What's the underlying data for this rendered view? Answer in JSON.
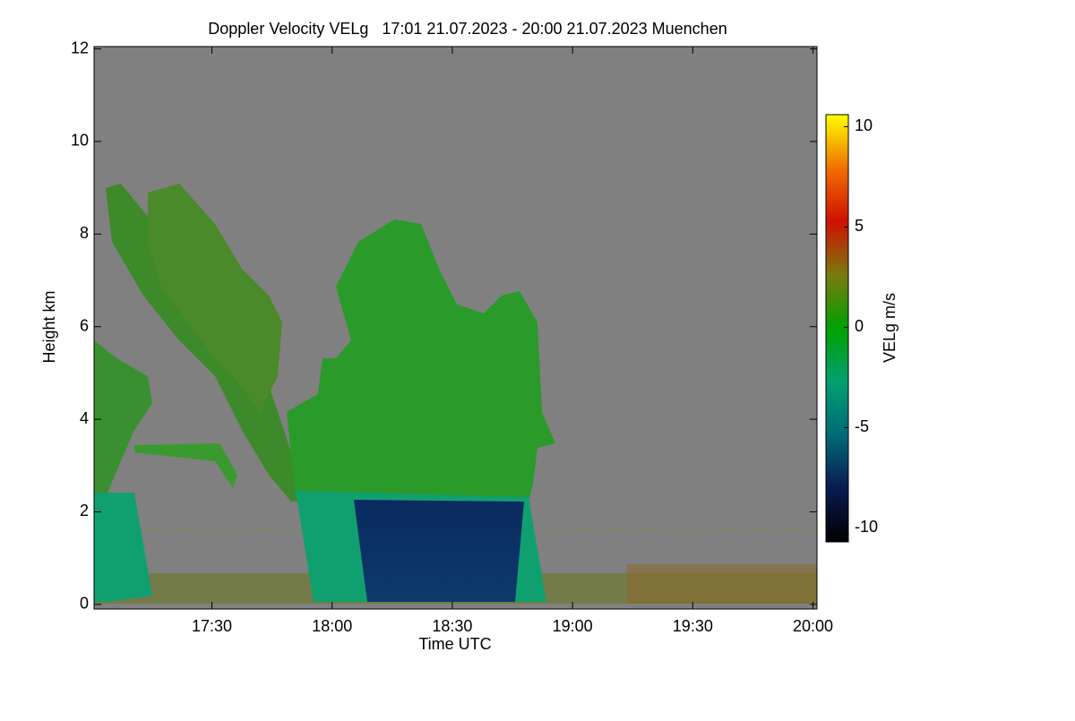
{
  "chart_data": {
    "type": "heatmap",
    "title": "Doppler Velocity VELg   17:01 21.07.2023 - 20:00 21.07.2023 Muenchen",
    "x_label": "Time UTC",
    "y_label": "Height km",
    "xlim": [
      1020.6,
      1201
    ],
    "xticks": [
      {
        "value": 1050,
        "label": "17:30"
      },
      {
        "value": 1080,
        "label": "18:00"
      },
      {
        "value": 1110,
        "label": "18:30"
      },
      {
        "value": 1140,
        "label": "19:00"
      },
      {
        "value": 1170,
        "label": "19:30"
      },
      {
        "value": 1200,
        "label": "20:00"
      }
    ],
    "ylim": [
      -0.1,
      12.05
    ],
    "yticks": [
      0,
      2,
      4,
      6,
      8,
      10,
      12
    ],
    "background": "#808080",
    "colorbar": {
      "label": "VELg m/s",
      "lim": [
        -10.7,
        10.6
      ],
      "ticks": [
        10,
        5,
        0,
        -5,
        -10
      ],
      "colors": [
        "#000000",
        "#0a1a50",
        "#006a78",
        "#00a070",
        "#00a000",
        "#7a7a10",
        "#d01000",
        "#f07000",
        "#ffff00"
      ]
    }
  }
}
